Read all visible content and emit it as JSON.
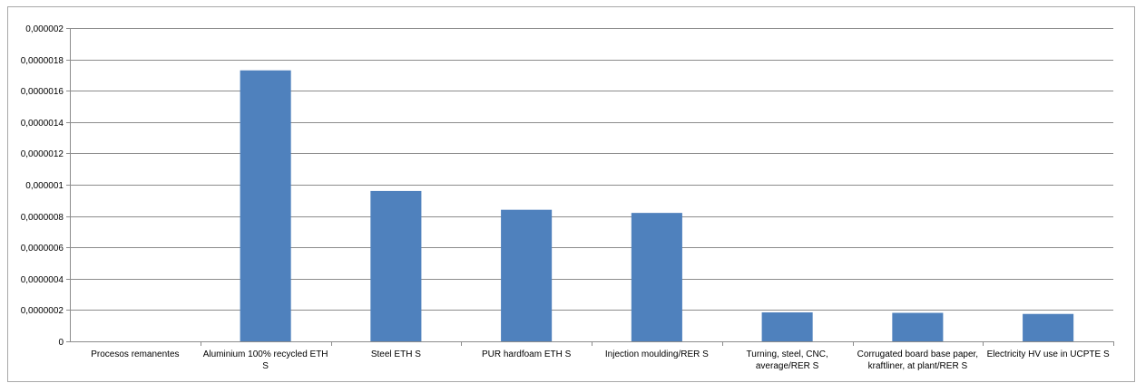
{
  "chart_data": {
    "type": "bar",
    "title": "",
    "xlabel": "",
    "ylabel": "",
    "ylim": [
      0,
      2e-06
    ],
    "y_ticks": [
      "0",
      "0,0000002",
      "0,0000004",
      "0,0000006",
      "0,0000008",
      "0,000001",
      "0,0000012",
      "0,0000014",
      "0,0000016",
      "0,0000018",
      "0,000002"
    ],
    "categories": [
      "Procesos remanentes",
      "Aluminium 100% recycled ETH S",
      "Steel ETH S",
      "PUR hardfoam ETH S",
      "Injection moulding/RER S",
      "Turning, steel, CNC, average/RER S",
      "Corrugated board base paper, kraftliner, at plant/RER S",
      "Electricity HV use in UCPTE S"
    ],
    "category_lines": [
      [
        "Procesos remanentes"
      ],
      [
        "Aluminium 100% recycled ETH",
        "S"
      ],
      [
        "Steel ETH S"
      ],
      [
        "PUR hardfoam ETH S"
      ],
      [
        "Injection moulding/RER S"
      ],
      [
        "Turning, steel, CNC,",
        "average/RER S"
      ],
      [
        "Corrugated board base paper,",
        "kraftliner, at plant/RER S"
      ],
      [
        "Electricity HV use in UCPTE S"
      ]
    ],
    "values": [
      0,
      1.73e-06,
      9.6e-07,
      8.4e-07,
      8.2e-07,
      1.85e-07,
      1.82e-07,
      1.75e-07
    ],
    "bar_color": "#4f81bd",
    "grid": true,
    "legend": "none"
  }
}
